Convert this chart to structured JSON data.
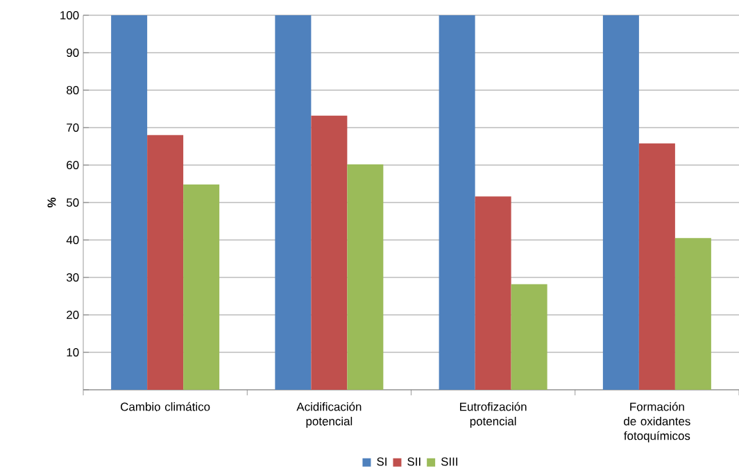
{
  "chart_data": {
    "type": "bar",
    "ylabel": "**%**",
    "categories": [
      "Cambio climático",
      "Acidificación potencial",
      "Eutrofización potencial",
      "Formación de oxidantes fotoquímicos"
    ],
    "series": [
      {
        "name": "SI",
        "color": "#4f81bd",
        "values": [
          100,
          100,
          100,
          100
        ]
      },
      {
        "name": "SII",
        "color": "#c0504d",
        "values": [
          68,
          73.2,
          51.6,
          65.8
        ]
      },
      {
        "name": "SIII",
        "color": "#9bbb59",
        "values": [
          54.8,
          60.2,
          28.2,
          40.5
        ]
      }
    ],
    "ylim": [
      0,
      100
    ],
    "yticks": [
      {
        "value": 0,
        "label": null
      },
      10,
      20,
      30,
      40,
      50,
      60,
      70,
      80,
      90,
      100
    ],
    "grid": "y",
    "legend": "bottom"
  }
}
